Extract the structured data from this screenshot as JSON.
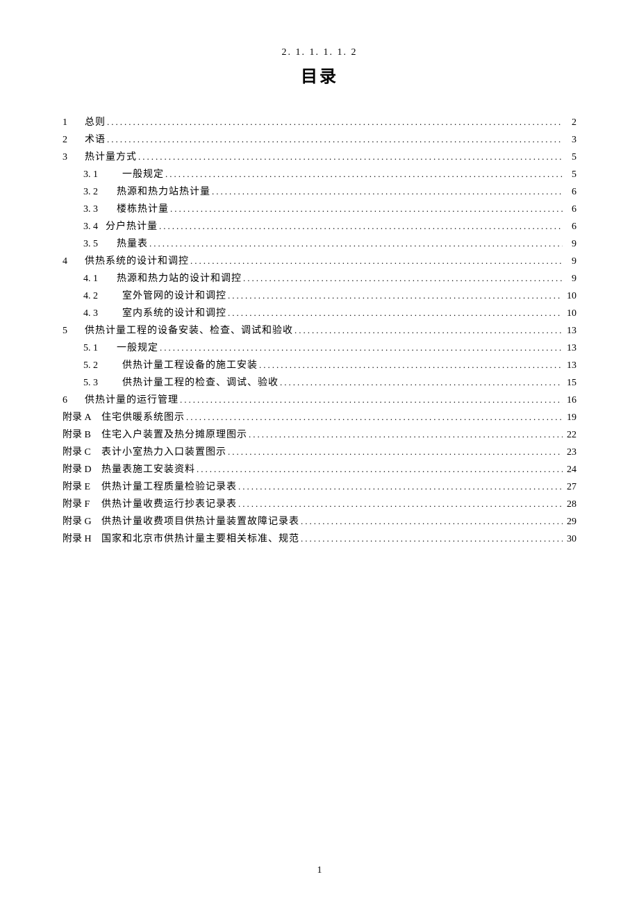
{
  "header_number": "2. 1. 1. 1. 1. 2",
  "title": "目录",
  "page_number": "1",
  "toc": [
    {
      "num": "1",
      "label": "总则",
      "page": "2",
      "level": 0,
      "numClass": ""
    },
    {
      "num": "2",
      "label": "术语",
      "page": "3",
      "level": 0,
      "numClass": ""
    },
    {
      "num": "3",
      "label": "热计量方式",
      "page": "5",
      "level": 0,
      "numClass": ""
    },
    {
      "num": "3. 1",
      "label": "一般规定",
      "page": "5",
      "level": 1,
      "gap": true
    },
    {
      "num": "3. 2",
      "label": "热源和热力站热计量",
      "page": "6",
      "level": 1
    },
    {
      "num": "3. 3",
      "label": "楼栋热计量",
      "page": "6",
      "level": 1
    },
    {
      "num": "3. 4",
      "label": "分户热计量",
      "page": "6",
      "level": 1,
      "tight": true
    },
    {
      "num": "3. 5",
      "label": "热量表",
      "page": "9",
      "level": 1
    },
    {
      "num": "4",
      "label": "供热系统的设计和调控",
      "page": "9",
      "level": 0,
      "numClass": ""
    },
    {
      "num": "4. 1",
      "label": "热源和热力站的设计和调控",
      "page": "9",
      "level": 1
    },
    {
      "num": "4. 2",
      "label": "室外管网的设计和调控",
      "page": "10",
      "level": 1,
      "gap": true
    },
    {
      "num": "4. 3",
      "label": "室内系统的设计和调控",
      "page": "10",
      "level": 1,
      "gap": true
    },
    {
      "num": "5",
      "label": "供热计量工程的设备安装、检查、调试和验收",
      "page": "13",
      "level": 0,
      "numClass": ""
    },
    {
      "num": "5. 1",
      "label": "一般规定",
      "page": "13",
      "level": 1
    },
    {
      "num": "5. 2",
      "label": "供热计量工程设备的施工安装",
      "page": "13",
      "level": 1,
      "gap": true
    },
    {
      "num": "5. 3",
      "label": "供热计量工程的检查、调试、验收",
      "page": "15",
      "level": 1,
      "gap": true
    },
    {
      "num": "6",
      "label": "供热计量的运行管理",
      "page": "16",
      "level": 0,
      "numClass": ""
    },
    {
      "num": "附录 A",
      "label": "住宅供暖系统图示",
      "page": "19",
      "level": 0,
      "numClass": "wide"
    },
    {
      "num": "附录 B",
      "label": "住宅入户装置及热分摊原理图示",
      "page": "22",
      "level": 0,
      "numClass": "wide"
    },
    {
      "num": "附录 C",
      "label": "表计小室热力入口装置图示",
      "page": "23",
      "level": 0,
      "numClass": "wide"
    },
    {
      "num": "附录 D",
      "label": "热量表施工安装资料",
      "page": "24",
      "level": 0,
      "numClass": "wide"
    },
    {
      "num": "附录 E",
      "label": "供热计量工程质量检验记录表",
      "page": "27",
      "level": 0,
      "numClass": "wide"
    },
    {
      "num": "附录 F",
      "label": "供热计量收费运行抄表记录表",
      "page": "28",
      "level": 0,
      "numClass": "wide"
    },
    {
      "num": "附录 G",
      "label": "供热计量收费项目供热计量装置故障记录表",
      "page": "29",
      "level": 0,
      "numClass": "wide"
    },
    {
      "num": "附录 H",
      "label": "国家和北京市供热计量主要相关标准、规范",
      "page": "30",
      "level": 0,
      "numClass": "wide"
    }
  ]
}
